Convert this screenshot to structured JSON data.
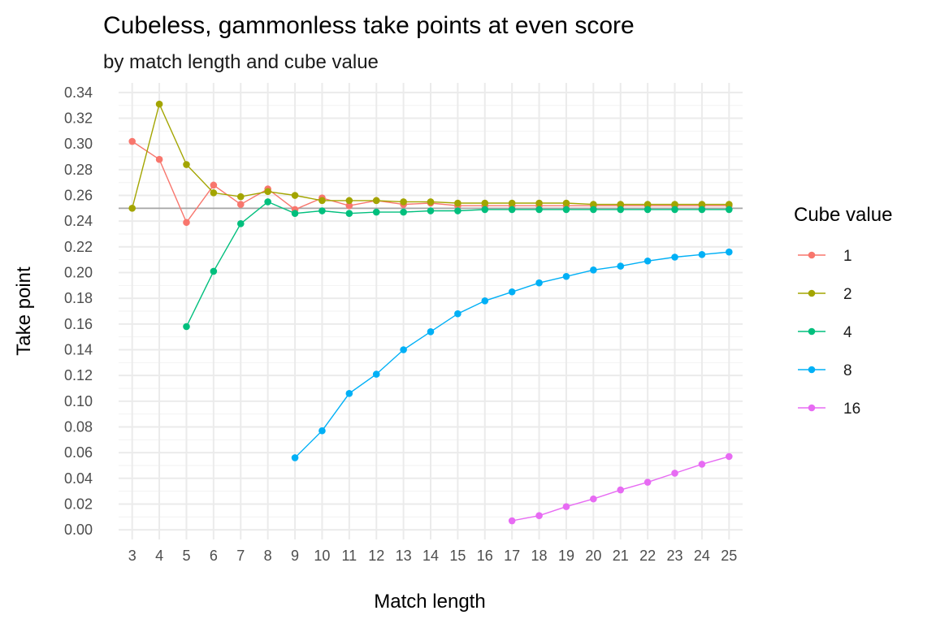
{
  "chart_data": {
    "type": "line",
    "title": "Cubeless, gammonless take points at even score",
    "subtitle": "by match length and cube value",
    "xlabel": "Match length",
    "ylabel": "Take point",
    "x": [
      3,
      4,
      5,
      6,
      7,
      8,
      9,
      10,
      11,
      12,
      13,
      14,
      15,
      16,
      17,
      18,
      19,
      20,
      21,
      22,
      23,
      24,
      25
    ],
    "xlim": [
      2.5,
      25.5
    ],
    "ylim": [
      -0.0075,
      0.3475
    ],
    "yticks": [
      0.0,
      0.02,
      0.04,
      0.06,
      0.08,
      0.1,
      0.12,
      0.14,
      0.16,
      0.18,
      0.2,
      0.22,
      0.24,
      0.26,
      0.28,
      0.3,
      0.32,
      0.34
    ],
    "ytick_labels": [
      "0.00",
      "0.02",
      "0.04",
      "0.06",
      "0.08",
      "0.10",
      "0.12",
      "0.14",
      "0.16",
      "0.18",
      "0.20",
      "0.22",
      "0.24",
      "0.26",
      "0.28",
      "0.30",
      "0.32",
      "0.34"
    ],
    "hline": 0.25,
    "hline_color": "#a6a6a6",
    "grid": true,
    "legend": {
      "title": "Cube value",
      "position": "right"
    },
    "series": [
      {
        "name": "1",
        "color": "#f8766d",
        "x": [
          3,
          4,
          5,
          6,
          7,
          8,
          9,
          10,
          11,
          12,
          13,
          14,
          15,
          16,
          17,
          18,
          19,
          20,
          21,
          22,
          23,
          24,
          25
        ],
        "y": [
          0.302,
          0.288,
          0.239,
          0.268,
          0.253,
          0.265,
          0.249,
          0.258,
          0.252,
          0.256,
          0.253,
          0.254,
          0.252,
          0.252,
          0.252,
          0.252,
          0.252,
          0.252,
          0.252,
          0.252,
          0.252,
          0.252,
          0.252
        ]
      },
      {
        "name": "2",
        "color": "#a3a500",
        "x": [
          3,
          4,
          5,
          6,
          7,
          8,
          9,
          10,
          11,
          12,
          13,
          14,
          15,
          16,
          17,
          18,
          19,
          20,
          21,
          22,
          23,
          24,
          25
        ],
        "y": [
          0.25,
          0.331,
          0.284,
          0.262,
          0.259,
          0.263,
          0.26,
          0.256,
          0.256,
          0.256,
          0.255,
          0.255,
          0.254,
          0.254,
          0.254,
          0.254,
          0.254,
          0.253,
          0.253,
          0.253,
          0.253,
          0.253,
          0.253
        ]
      },
      {
        "name": "4",
        "color": "#00bf7d",
        "x": [
          5,
          6,
          7,
          8,
          9,
          10,
          11,
          12,
          13,
          14,
          15,
          16,
          17,
          18,
          19,
          20,
          21,
          22,
          23,
          24,
          25
        ],
        "y": [
          0.158,
          0.201,
          0.238,
          0.255,
          0.246,
          0.248,
          0.246,
          0.247,
          0.247,
          0.248,
          0.248,
          0.249,
          0.249,
          0.249,
          0.249,
          0.249,
          0.249,
          0.249,
          0.249,
          0.249,
          0.249
        ]
      },
      {
        "name": "8",
        "color": "#00b0f6",
        "x": [
          9,
          10,
          11,
          12,
          13,
          14,
          15,
          16,
          17,
          18,
          19,
          20,
          21,
          22,
          23,
          24,
          25
        ],
        "y": [
          0.056,
          0.077,
          0.106,
          0.121,
          0.14,
          0.154,
          0.168,
          0.178,
          0.185,
          0.192,
          0.197,
          0.202,
          0.205,
          0.209,
          0.212,
          0.214,
          0.216
        ]
      },
      {
        "name": "16",
        "color": "#e76bf3",
        "x": [
          17,
          18,
          19,
          20,
          21,
          22,
          23,
          24,
          25
        ],
        "y": [
          0.007,
          0.011,
          0.018,
          0.024,
          0.031,
          0.037,
          0.044,
          0.051,
          0.057
        ]
      }
    ]
  }
}
